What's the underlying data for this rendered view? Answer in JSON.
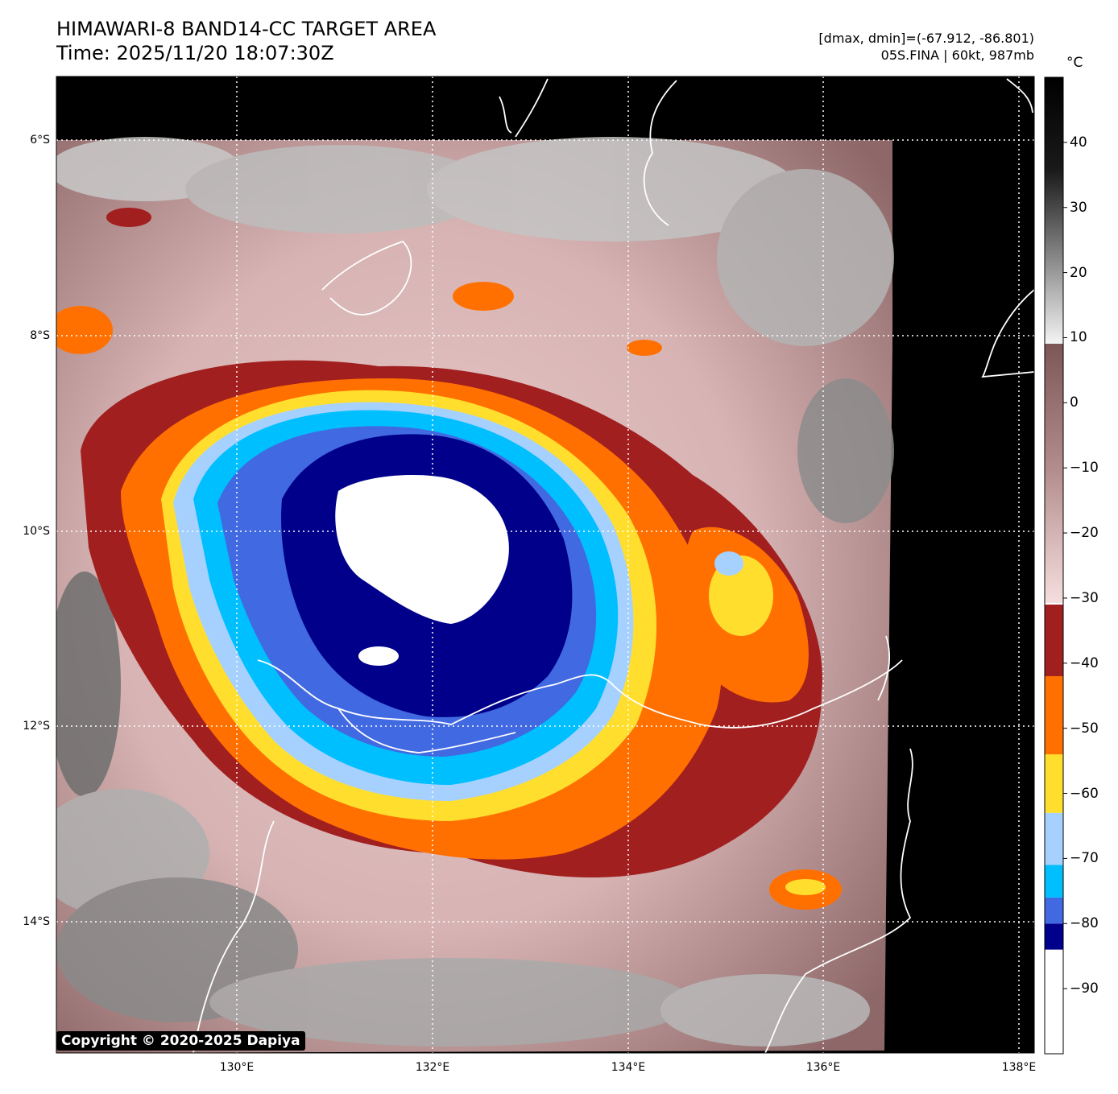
{
  "header": {
    "title_line1": "HIMAWARI-8 BAND14-CC TARGET AREA",
    "title_line2": "Time: 2025/11/20 18:07:30Z",
    "info_line1": "[dmax, dmin]=(-67.912, -86.801)",
    "info_line2": "05S.FINA | 60kt, 987mb"
  },
  "map": {
    "latitude_labels": [
      "6°S",
      "8°S",
      "10°S",
      "12°S",
      "14°S"
    ],
    "longitude_labels": [
      "130°E",
      "132°E",
      "134°E",
      "136°E",
      "138°E"
    ],
    "lat_range": [
      -15.3,
      -5.4
    ],
    "lon_range": [
      128.2,
      138.2
    ],
    "gridlines": "dotted white",
    "no_data_color": "#000000",
    "coastline_color": "#ffffff"
  },
  "colorbar": {
    "unit": "°C",
    "tick_labels": [
      "40",
      "30",
      "20",
      "10",
      "0",
      "−10",
      "−20",
      "−30",
      "−40",
      "−50",
      "−60",
      "−70",
      "−80",
      "−90"
    ],
    "range": [
      -100,
      50
    ],
    "segments": [
      {
        "from": -100,
        "to": -84,
        "color": "#ffffff"
      },
      {
        "from": -84,
        "to": -80,
        "color": "#00008b"
      },
      {
        "from": -80,
        "to": -76,
        "color": "#4169e1"
      },
      {
        "from": -76,
        "to": -71,
        "color": "#00bfff"
      },
      {
        "from": -71,
        "to": -63,
        "color": "#a6d1ff"
      },
      {
        "from": -63,
        "to": -54,
        "color": "#ffde2e"
      },
      {
        "from": -54,
        "to": -42,
        "color": "#ff7000"
      },
      {
        "from": -42,
        "to": -31,
        "color": "#a21f1f"
      }
    ]
  },
  "copyright": "Copyright © 2020-2025 Dapiya"
}
